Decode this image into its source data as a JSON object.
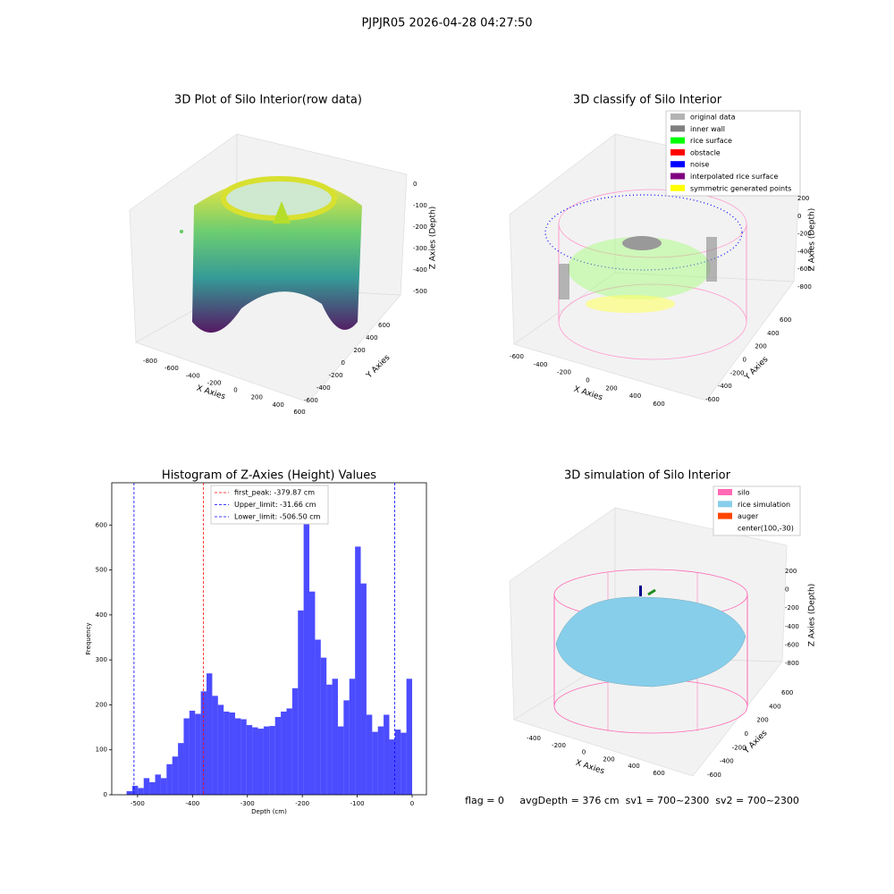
{
  "suptitle": "PJPJR05 2026-04-28 04:27:50",
  "plot_raw": {
    "title": "3D Plot of Silo Interior(row data)",
    "xlabel": "X Axies",
    "ylabel": "Y Axies",
    "zlabel": "Z Axies (Depth)",
    "xticks": [
      -800,
      -600,
      -400,
      -200,
      0,
      200,
      400,
      600
    ],
    "yticks": [
      600,
      400,
      200,
      0,
      -200,
      -400,
      -600
    ],
    "zticks": [
      0,
      -100,
      -200,
      -300,
      -400,
      -500
    ]
  },
  "plot_classify": {
    "title": "3D classify of Silo Interior",
    "xlabel": "X Axies",
    "ylabel": "Y Axies",
    "zlabel": "Z Axies (Depth)",
    "xticks": [
      -600,
      -400,
      -200,
      0,
      200,
      400,
      600
    ],
    "yticks": [
      600,
      400,
      200,
      0,
      -200,
      -400,
      -600
    ],
    "zticks": [
      200,
      0,
      -200,
      -400,
      -600,
      -800
    ],
    "legend": [
      {
        "name": "original data",
        "color": "#b3b3b3"
      },
      {
        "name": "inner wall",
        "color": "#808080"
      },
      {
        "name": "rice surface",
        "color": "#00ff00"
      },
      {
        "name": "obstacle",
        "color": "#ff0000"
      },
      {
        "name": "noise",
        "color": "#0000ff"
      },
      {
        "name": "interpolated rice surface",
        "color": "#800080"
      },
      {
        "name": "symmetric generated points",
        "color": "#ffff00"
      }
    ]
  },
  "chart_data": {
    "type": "histogram",
    "title": "Histogram of Z-Axies (Height) Values",
    "xlabel": "Depth (cm)",
    "ylabel": "Frequency",
    "color": "#0000ff",
    "bins": [
      -520,
      -509.6,
      -499.2,
      -488.8,
      -478.4,
      -468,
      -457.6,
      -447.2,
      -436.8,
      -426.4,
      -416,
      -405.6,
      -395.2,
      -384.8,
      -374.4,
      -364,
      -353.6,
      -343.2,
      -332.8,
      -322.4,
      -312,
      -301.6,
      -291.2,
      -280.8,
      -270.4,
      -260,
      -249.6,
      -239.2,
      -228.8,
      -218.4,
      -208,
      -197.6,
      -187.2,
      -176.8,
      -166.4,
      -156,
      -145.6,
      -135.2,
      -124.8,
      -114.4,
      -104,
      -93.6,
      -83.2,
      -72.8,
      -62.4,
      -52,
      -41.6,
      -31.2,
      -20.8,
      -10.4,
      0
    ],
    "counts": [
      8,
      20,
      15,
      37,
      28,
      45,
      37,
      68,
      85,
      115,
      170,
      187,
      180,
      230,
      270,
      220,
      200,
      185,
      183,
      170,
      168,
      155,
      150,
      147,
      152,
      153,
      173,
      185,
      192,
      237,
      410,
      655,
      452,
      345,
      305,
      245,
      258,
      152,
      210,
      258,
      552,
      470,
      178,
      140,
      152,
      178,
      123,
      145,
      138,
      258
    ],
    "xlim": [
      -547,
      26
    ],
    "ylim": [
      0,
      694
    ],
    "xticks": [
      -500,
      -400,
      -300,
      -200,
      -100,
      0
    ],
    "yticks": [
      0,
      100,
      200,
      300,
      400,
      500,
      600
    ],
    "vlines": [
      {
        "name": "first_peak: -379.87 cm",
        "value": -379.87,
        "color": "#ff0000"
      },
      {
        "name": "Upper_limit: -31.66 cm",
        "value": -31.66,
        "color": "#0000ff"
      },
      {
        "name": "Lower_limit: -506.50 cm",
        "value": -506.5,
        "color": "#0000ff"
      }
    ]
  },
  "plot_sim": {
    "title": "3D simulation of Silo Interior",
    "xlabel": "X Axies",
    "ylabel": "Y Axies",
    "zlabel": "Z Axies (Depth)",
    "xticks": [
      -400,
      -200,
      0,
      200,
      400,
      600
    ],
    "yticks": [
      600,
      400,
      200,
      0,
      -200,
      -400,
      -600
    ],
    "zticks": [
      200,
      0,
      -200,
      -400,
      -600,
      -800
    ],
    "legend": [
      {
        "name": "silo",
        "color": "#ff69b4"
      },
      {
        "name": "rice simulation",
        "color": "#87ceeb"
      },
      {
        "name": "auger",
        "color": "#ff4500"
      },
      {
        "name": "center(100,-30)"
      }
    ]
  },
  "footer": "flag = 0     avgDepth = 376 cm  sv1 = 700~2300  sv2 = 700~2300"
}
